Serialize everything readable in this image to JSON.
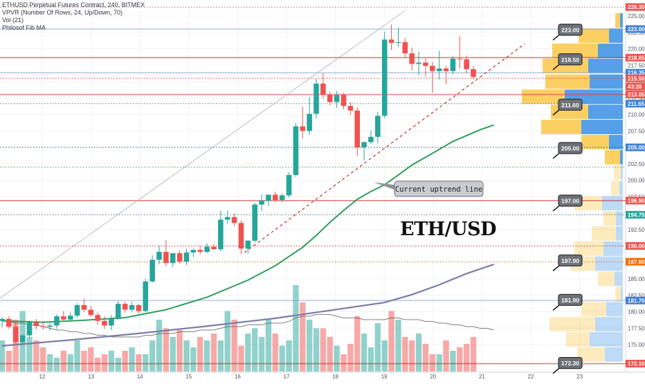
{
  "header": {
    "title": "ETHUSD Perpetual Futures Contract, 240, BITMEX",
    "indicator_vpvr": "VPVR (Number Of Rows, 24, Up/Down, 70)",
    "indicator_vol": "Vol (21)",
    "indicator_fib": "Philosof Fib MA"
  },
  "overlay_title": "ETH/USD",
  "chart_data": {
    "type": "candlestick",
    "x_ticks": [
      "12",
      "13",
      "14",
      "15",
      "16",
      "17",
      "18",
      "19",
      "20",
      "21",
      "22",
      "23"
    ],
    "y_ticks": [
      175.0,
      177.5,
      180.0,
      182.5,
      185.0,
      187.5,
      190.0,
      192.5,
      195.0,
      197.5,
      200.0,
      202.5,
      205.0,
      207.5,
      210.0,
      212.5,
      215.0,
      217.5,
      220.0,
      222.5,
      225.0
    ],
    "ylim": [
      171.0,
      227.0
    ],
    "colors": {
      "up": "#26a69a",
      "down": "#ef5350",
      "ma_short": "#2e9e5b",
      "ma_long": "#7b7ba8"
    },
    "candles": [
      {
        "o": 178.6,
        "h": 179.2,
        "l": 177.6,
        "c": 178.9
      },
      {
        "o": 178.9,
        "h": 179.3,
        "l": 177.4,
        "c": 177.7
      },
      {
        "o": 177.7,
        "h": 178.6,
        "l": 175.0,
        "c": 175.4
      },
      {
        "o": 175.4,
        "h": 176.6,
        "l": 174.9,
        "c": 176.4
      },
      {
        "o": 176.4,
        "h": 178.7,
        "l": 176.1,
        "c": 178.4
      },
      {
        "o": 178.4,
        "h": 178.9,
        "l": 177.3,
        "c": 177.8
      },
      {
        "o": 177.8,
        "h": 178.6,
        "l": 177.3,
        "c": 177.7
      },
      {
        "o": 177.7,
        "h": 178.3,
        "l": 177.1,
        "c": 177.9
      },
      {
        "o": 177.9,
        "h": 179.6,
        "l": 177.4,
        "c": 179.3
      },
      {
        "o": 179.3,
        "h": 180.1,
        "l": 178.6,
        "c": 178.8
      },
      {
        "o": 178.8,
        "h": 179.9,
        "l": 178.5,
        "c": 179.4
      },
      {
        "o": 179.4,
        "h": 181.3,
        "l": 179.1,
        "c": 181.0
      },
      {
        "o": 181.0,
        "h": 182.0,
        "l": 179.9,
        "c": 180.3
      },
      {
        "o": 180.3,
        "h": 180.9,
        "l": 179.2,
        "c": 179.5
      },
      {
        "o": 179.5,
        "h": 179.9,
        "l": 178.0,
        "c": 178.6
      },
      {
        "o": 178.6,
        "h": 179.3,
        "l": 177.4,
        "c": 177.9
      },
      {
        "o": 177.9,
        "h": 179.5,
        "l": 177.2,
        "c": 178.9
      },
      {
        "o": 178.9,
        "h": 181.6,
        "l": 178.7,
        "c": 181.2
      },
      {
        "o": 181.2,
        "h": 181.5,
        "l": 179.8,
        "c": 180.3
      },
      {
        "o": 180.3,
        "h": 181.5,
        "l": 179.9,
        "c": 181.0
      },
      {
        "o": 181.0,
        "h": 181.2,
        "l": 179.7,
        "c": 180.1
      },
      {
        "o": 180.1,
        "h": 185.0,
        "l": 179.9,
        "c": 184.6
      },
      {
        "o": 184.6,
        "h": 188.6,
        "l": 184.4,
        "c": 187.9
      },
      {
        "o": 187.9,
        "h": 190.1,
        "l": 187.2,
        "c": 189.1
      },
      {
        "o": 189.1,
        "h": 190.9,
        "l": 186.9,
        "c": 187.4
      },
      {
        "o": 187.4,
        "h": 188.6,
        "l": 186.8,
        "c": 188.9
      },
      {
        "o": 188.9,
        "h": 189.3,
        "l": 187.3,
        "c": 187.6
      },
      {
        "o": 187.6,
        "h": 189.6,
        "l": 187.1,
        "c": 189.0
      },
      {
        "o": 189.0,
        "h": 189.6,
        "l": 188.3,
        "c": 189.4
      },
      {
        "o": 189.4,
        "h": 190.1,
        "l": 188.7,
        "c": 189.1
      },
      {
        "o": 189.1,
        "h": 190.4,
        "l": 188.9,
        "c": 189.9
      },
      {
        "o": 189.9,
        "h": 190.3,
        "l": 189.4,
        "c": 189.5
      },
      {
        "o": 189.5,
        "h": 195.4,
        "l": 189.2,
        "c": 194.0
      },
      {
        "o": 194.0,
        "h": 195.4,
        "l": 193.4,
        "c": 194.4
      },
      {
        "o": 194.4,
        "h": 194.9,
        "l": 193.0,
        "c": 193.5
      },
      {
        "o": 193.5,
        "h": 193.9,
        "l": 188.7,
        "c": 189.6
      },
      {
        "o": 189.6,
        "h": 190.9,
        "l": 188.8,
        "c": 190.8
      },
      {
        "o": 190.8,
        "h": 196.6,
        "l": 190.6,
        "c": 196.3
      },
      {
        "o": 196.3,
        "h": 197.8,
        "l": 195.3,
        "c": 196.9
      },
      {
        "o": 196.9,
        "h": 197.4,
        "l": 196.1,
        "c": 197.8
      },
      {
        "o": 197.8,
        "h": 198.3,
        "l": 196.6,
        "c": 197.0
      },
      {
        "o": 197.0,
        "h": 198.0,
        "l": 196.6,
        "c": 197.7
      },
      {
        "o": 197.7,
        "h": 201.2,
        "l": 197.4,
        "c": 200.8
      },
      {
        "o": 200.8,
        "h": 208.7,
        "l": 200.5,
        "c": 208.2
      },
      {
        "o": 208.2,
        "h": 211.2,
        "l": 206.4,
        "c": 207.5
      },
      {
        "o": 207.5,
        "h": 212.7,
        "l": 206.9,
        "c": 210.1
      },
      {
        "o": 210.1,
        "h": 215.4,
        "l": 209.4,
        "c": 214.7
      },
      {
        "o": 214.7,
        "h": 216.3,
        "l": 212.4,
        "c": 213.0
      },
      {
        "o": 213.0,
        "h": 213.5,
        "l": 211.4,
        "c": 211.9
      },
      {
        "o": 211.9,
        "h": 213.6,
        "l": 211.0,
        "c": 213.0
      },
      {
        "o": 213.0,
        "h": 213.3,
        "l": 210.8,
        "c": 211.3
      },
      {
        "o": 211.3,
        "h": 211.9,
        "l": 209.9,
        "c": 210.6
      },
      {
        "o": 210.6,
        "h": 211.1,
        "l": 203.7,
        "c": 205.0
      },
      {
        "o": 205.0,
        "h": 205.9,
        "l": 203.0,
        "c": 205.8
      },
      {
        "o": 205.8,
        "h": 207.6,
        "l": 205.5,
        "c": 206.6
      },
      {
        "o": 206.6,
        "h": 210.4,
        "l": 205.6,
        "c": 209.8
      },
      {
        "o": 209.8,
        "h": 222.6,
        "l": 209.5,
        "c": 221.4
      },
      {
        "o": 221.4,
        "h": 223.7,
        "l": 219.8,
        "c": 220.9
      },
      {
        "o": 220.9,
        "h": 223.2,
        "l": 220.3,
        "c": 221.0
      },
      {
        "o": 221.0,
        "h": 221.6,
        "l": 218.6,
        "c": 219.3
      },
      {
        "o": 219.3,
        "h": 220.2,
        "l": 216.7,
        "c": 217.7
      },
      {
        "o": 217.7,
        "h": 219.6,
        "l": 216.0,
        "c": 217.9
      },
      {
        "o": 217.9,
        "h": 218.5,
        "l": 215.8,
        "c": 217.4
      },
      {
        "o": 217.4,
        "h": 218.0,
        "l": 213.3,
        "c": 216.6
      },
      {
        "o": 216.6,
        "h": 219.7,
        "l": 215.3,
        "c": 217.0
      },
      {
        "o": 217.0,
        "h": 217.4,
        "l": 214.6,
        "c": 216.6
      },
      {
        "o": 216.6,
        "h": 218.9,
        "l": 216.1,
        "c": 218.5
      },
      {
        "o": 218.5,
        "h": 222.0,
        "l": 217.0,
        "c": 218.4
      },
      {
        "o": 218.4,
        "h": 219.0,
        "l": 216.3,
        "c": 216.9
      },
      {
        "o": 216.9,
        "h": 217.4,
        "l": 215.3,
        "c": 215.7
      }
    ],
    "volume": {
      "values": [
        18,
        12,
        30,
        35,
        20,
        18,
        14,
        10,
        8,
        12,
        10,
        18,
        12,
        14,
        8,
        10,
        12,
        8,
        12,
        14,
        10,
        10,
        18,
        30,
        25,
        20,
        24,
        18,
        14,
        20,
        18,
        22,
        18,
        35,
        30,
        15,
        22,
        25,
        20,
        30,
        22,
        15,
        18,
        50,
        40,
        30,
        25,
        25,
        20,
        15,
        10,
        16,
        32,
        22,
        14,
        28,
        18,
        35,
        30,
        20,
        18,
        22,
        16,
        10,
        10,
        18,
        12,
        14,
        16,
        20,
        12,
        10,
        8
      ],
      "ylim": [
        0,
        60
      ],
      "ma": [
        30,
        29,
        28,
        28,
        27,
        27,
        26,
        25,
        24,
        24,
        23,
        23,
        22,
        22,
        21,
        21,
        20,
        20,
        20,
        20,
        20,
        21,
        21,
        22,
        22,
        22,
        23,
        23,
        23,
        24,
        24,
        24,
        25,
        26,
        26,
        26,
        27,
        27,
        27,
        28,
        28,
        28,
        29,
        31,
        32,
        32,
        33,
        33,
        33,
        32,
        31,
        31,
        31,
        30,
        30,
        30,
        30,
        31,
        31,
        30,
        30,
        30,
        29,
        29,
        28,
        28,
        27,
        27,
        26,
        26,
        25,
        25,
        24
      ]
    },
    "ma_short": {
      "x": [
        0,
        6,
        12,
        18,
        24,
        30,
        36,
        40,
        44,
        46,
        48,
        50,
        52,
        54,
        56,
        58,
        60,
        62,
        64,
        66,
        68,
        70,
        72
      ],
      "y": [
        178.6,
        178.4,
        178.7,
        179.1,
        180.3,
        182.2,
        184.8,
        187.0,
        189.8,
        191.6,
        193.6,
        195.4,
        197.1,
        198.3,
        199.3,
        200.8,
        202.3,
        203.5,
        204.7,
        205.9,
        206.8,
        207.7,
        208.4
      ]
    },
    "ma_long": {
      "x": [
        0,
        10,
        20,
        30,
        40,
        50,
        56,
        60,
        64,
        68,
        72
      ],
      "y": [
        174.8,
        175.7,
        176.7,
        177.8,
        179.0,
        180.5,
        181.4,
        182.6,
        184.1,
        185.8,
        187.2
      ]
    },
    "uptrend_line": {
      "x": [
        35.5,
        72.5
      ],
      "y": [
        189.0,
        219.2
      ]
    },
    "guide_line": {
      "x": [
        -2,
        59
      ],
      "y": [
        180.8,
        225.8
      ]
    },
    "hlines": [
      {
        "y": 226.35,
        "color": "#e53935",
        "style": "dotted"
      },
      {
        "y": 223.0,
        "color": "#90a4d4",
        "style": "solid"
      },
      {
        "y": 218.65,
        "color": "#c62828",
        "style": "solid"
      },
      {
        "y": 216.35,
        "color": "#90a4d4",
        "style": "solid"
      },
      {
        "y": 215.5,
        "color": "#e53935",
        "style": "dotted"
      },
      {
        "y": 213.05,
        "color": "#e53935",
        "style": "solid"
      },
      {
        "y": 211.65,
        "color": "#1565c0",
        "style": "dotted"
      },
      {
        "y": 205.0,
        "color": "#1e4fb0",
        "style": "dotted"
      },
      {
        "y": 202.0,
        "color": "#43a047",
        "style": "dotted"
      },
      {
        "y": 196.9,
        "color": "#c62828",
        "style": "solid"
      },
      {
        "y": 194.75,
        "color": "#2e7d76",
        "style": "dotted"
      },
      {
        "y": 190.0,
        "color": "#e53935",
        "style": "dotted"
      },
      {
        "y": 187.6,
        "color": "#ef6c00",
        "style": "dotted"
      },
      {
        "y": 181.7,
        "color": "#90a4d4",
        "style": "solid"
      },
      {
        "y": 172.1,
        "color": "#c62828",
        "style": "solid"
      }
    ],
    "price_labels": [
      {
        "text": "226.35",
        "y": 226.35,
        "bg": "#ef5350"
      },
      {
        "text": "223.00",
        "y": 223.0,
        "bg": "#3f7fd6"
      },
      {
        "text": "218.65",
        "y": 218.65,
        "bg": "#ef5350"
      },
      {
        "text": "216.35",
        "y": 216.35,
        "bg": "#3f7fd6"
      },
      {
        "text": "215.50",
        "y": 215.5,
        "bg": "#ef5350"
      },
      {
        "text": "43:26",
        "y": 214.25,
        "bg": "#ef5350"
      },
      {
        "text": "213.05",
        "y": 213.05,
        "bg": "#ef5350"
      },
      {
        "text": "211.65",
        "y": 211.65,
        "bg": "#3f7fd6"
      },
      {
        "text": "205.00",
        "y": 205.0,
        "bg": "#3f7fd6"
      },
      {
        "text": "196.90",
        "y": 196.9,
        "bg": "#ef5350"
      },
      {
        "text": "194.75",
        "y": 194.75,
        "bg": "#26a69a"
      },
      {
        "text": "190.00",
        "y": 190.0,
        "bg": "#ef5350"
      },
      {
        "text": "187.60",
        "y": 187.6,
        "bg": "#ef6c00"
      },
      {
        "text": "181.70",
        "y": 181.7,
        "bg": "#3f7fd6"
      },
      {
        "text": "172.10",
        "y": 172.1,
        "bg": "#ef5350"
      }
    ],
    "callouts": [
      {
        "text": "223.00",
        "y": 223.0
      },
      {
        "text": "218.50",
        "y": 218.5
      },
      {
        "text": "211.60",
        "y": 211.6
      },
      {
        "text": "205.00",
        "y": 205.0
      },
      {
        "text": "197.00",
        "y": 197.0
      },
      {
        "text": "187.90",
        "y": 187.9
      },
      {
        "text": "181.90",
        "y": 181.9
      },
      {
        "text": "172.30",
        "y": 172.3
      }
    ],
    "annotation": {
      "text": "Current uptrend line",
      "x": 44,
      "y": 198.8
    },
    "volume_profile": [
      {
        "price": 224.3,
        "up": 7,
        "down": 4
      },
      {
        "price": 222.0,
        "up": 44,
        "down": 20
      },
      {
        "price": 219.7,
        "up": 66,
        "down": 36
      },
      {
        "price": 217.4,
        "up": 66,
        "down": 50
      },
      {
        "price": 215.0,
        "up": 64,
        "down": 48
      },
      {
        "price": 212.7,
        "up": 62,
        "down": 84
      },
      {
        "price": 210.4,
        "up": 54,
        "down": 50
      },
      {
        "price": 208.1,
        "up": 58,
        "down": 60
      },
      {
        "price": 205.8,
        "up": 40,
        "down": 20
      },
      {
        "price": 203.5,
        "up": 22,
        "down": 4
      },
      {
        "price": 201.2,
        "up": 10,
        "down": 3
      },
      {
        "price": 198.8,
        "up": 12,
        "down": 5
      },
      {
        "price": 196.5,
        "up": 40,
        "down": 30
      },
      {
        "price": 194.2,
        "up": 18,
        "down": 10
      },
      {
        "price": 191.9,
        "up": 35,
        "down": 10
      },
      {
        "price": 189.6,
        "up": 42,
        "down": 28
      },
      {
        "price": 187.3,
        "up": 36,
        "down": 40
      },
      {
        "price": 185.0,
        "up": 24,
        "down": 12
      },
      {
        "price": 182.7,
        "up": 8,
        "down": 3
      },
      {
        "price": 180.4,
        "up": 36,
        "down": 24
      },
      {
        "price": 178.1,
        "up": 66,
        "down": 40
      },
      {
        "price": 175.8,
        "up": 34,
        "down": 48
      },
      {
        "price": 173.5,
        "up": 40,
        "down": 26
      }
    ]
  }
}
